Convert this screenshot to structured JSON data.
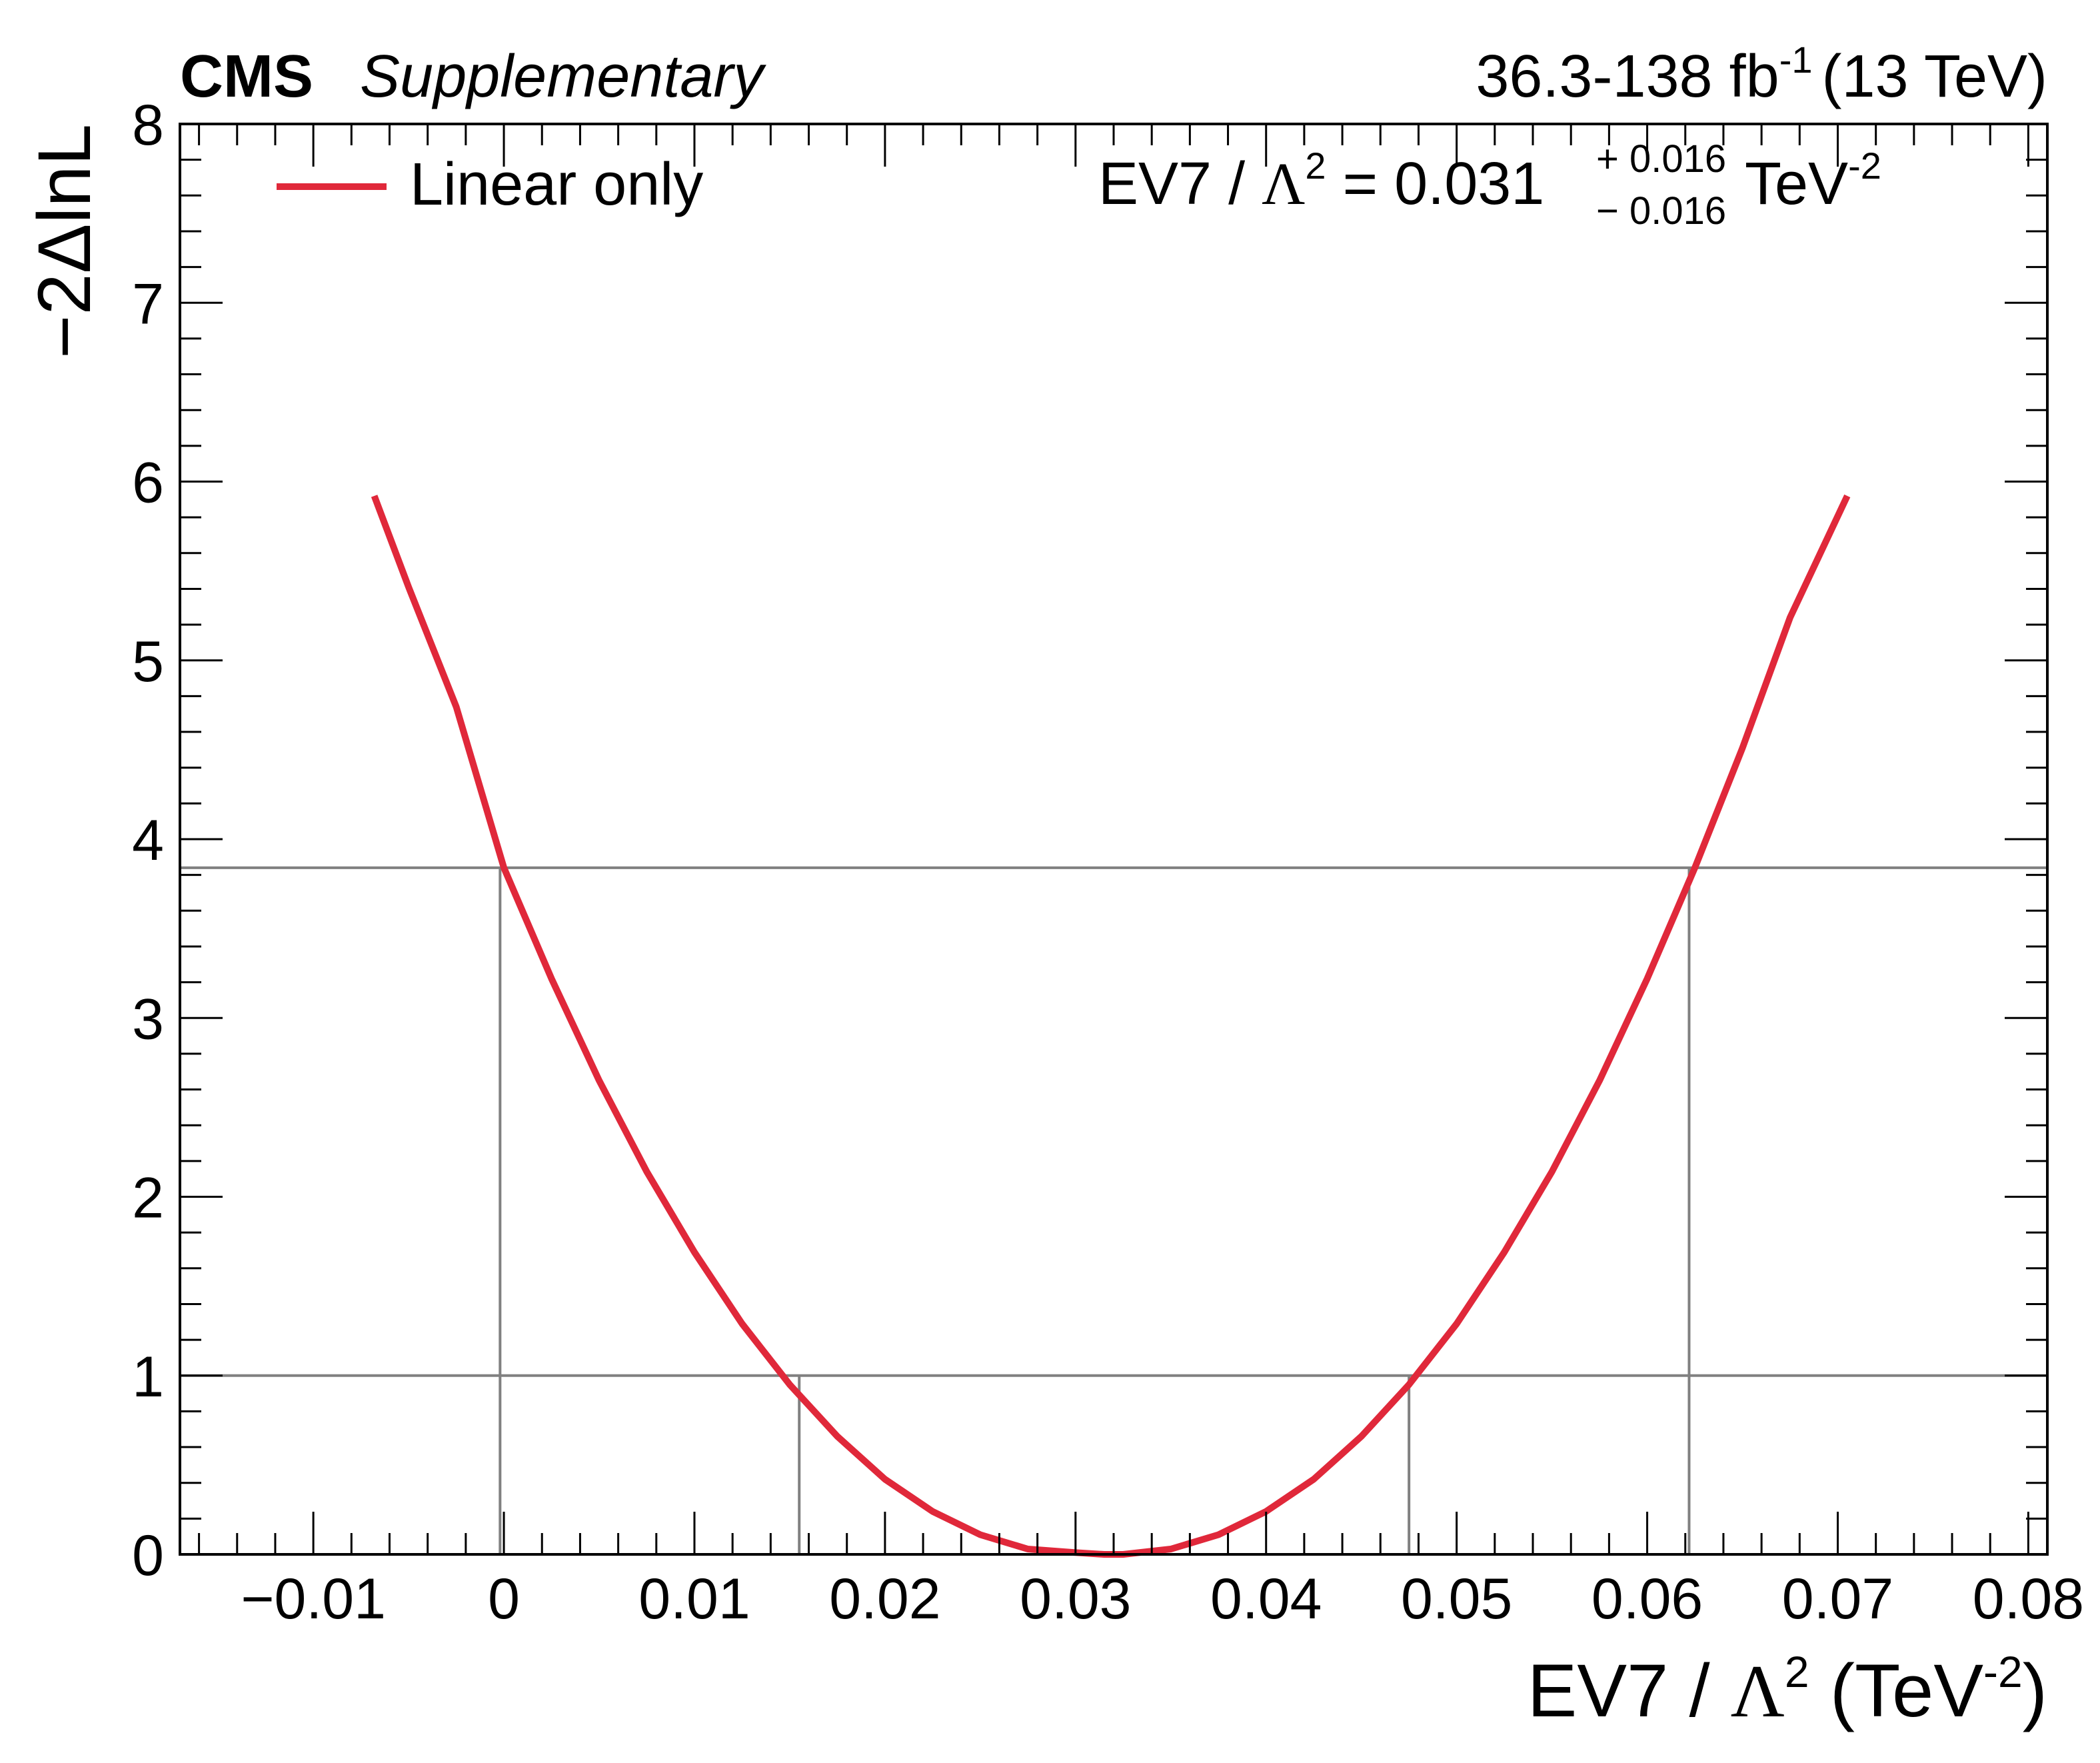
{
  "header": {
    "experiment": "CMS",
    "status": "Supplementary",
    "lumi_value": "36.3-138 fb",
    "lumi_exp": "-1",
    "energy": "(13 TeV)"
  },
  "legend": {
    "entry": "Linear only",
    "position": "top-left"
  },
  "result": {
    "label": "EV7 / ",
    "symbol": "Λ",
    "symbol_exp": "2",
    "equals": " = 0.031 ",
    "plus": "+ 0.016",
    "minus": "− 0.016",
    "unit": " TeV",
    "unit_exp": "-2"
  },
  "colors": {
    "curve": "#e0283a",
    "reference_lines": "#808080",
    "axes": "#000000"
  },
  "chart_data": {
    "type": "line",
    "title": "",
    "xlabel": "EV7 / Λ² (TeV⁻²)",
    "ylabel": "−2ΔlnL",
    "xlim": [
      -0.017,
      0.081
    ],
    "ylim": [
      0,
      8
    ],
    "x_ticks": [
      "−0.01",
      "0",
      "0.01",
      "0.02",
      "0.03",
      "0.04",
      "0.05",
      "0.06",
      "0.07",
      "0.08"
    ],
    "x_tick_values": [
      -0.01,
      0,
      0.01,
      0.02,
      0.03,
      0.04,
      0.05,
      0.06,
      0.07,
      0.08
    ],
    "y_ticks": [
      "0",
      "1",
      "2",
      "3",
      "4",
      "5",
      "6",
      "7",
      "8"
    ],
    "y_tick_values": [
      0,
      1,
      2,
      3,
      4,
      5,
      6,
      7,
      8
    ],
    "grid": false,
    "series": [
      {
        "name": "Linear only",
        "x": [
          -0.0068,
          -0.005,
          -0.0025,
          0.0,
          0.0025,
          0.005,
          0.0075,
          0.01,
          0.0125,
          0.015,
          0.0175,
          0.02,
          0.0225,
          0.025,
          0.0275,
          0.03,
          0.0315,
          0.0325,
          0.035,
          0.0375,
          0.04,
          0.0425,
          0.045,
          0.0475,
          0.05,
          0.0525,
          0.055,
          0.0575,
          0.06,
          0.0625,
          0.065,
          0.0675,
          0.0705
        ],
        "y": [
          5.92,
          5.41,
          4.74,
          3.84,
          3.22,
          2.65,
          2.14,
          1.69,
          1.29,
          0.95,
          0.66,
          0.42,
          0.24,
          0.11,
          0.03,
          0.01,
          0.0,
          0.0,
          0.03,
          0.11,
          0.24,
          0.42,
          0.66,
          0.95,
          1.29,
          1.69,
          2.14,
          2.65,
          3.22,
          3.84,
          4.51,
          5.24,
          5.92
        ]
      }
    ],
    "reference_levels": [
      {
        "y": 1.0,
        "x_low": 0.0155,
        "x_high": 0.0475
      },
      {
        "y": 3.84,
        "x_low": -0.0002,
        "x_high": 0.0622
      }
    ]
  }
}
